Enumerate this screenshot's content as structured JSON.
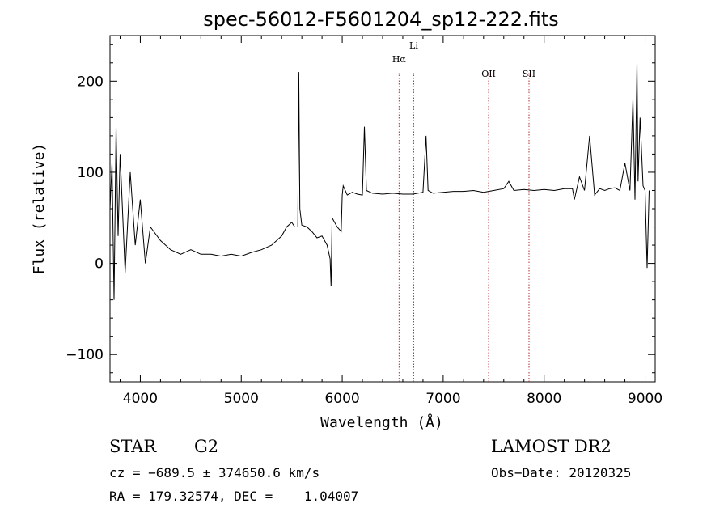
{
  "chart_data": {
    "type": "line",
    "title": "spec-56012-F5601204_sp12-222.fits",
    "xlabel": "Wavelength (Å)",
    "ylabel": "Flux (relative)",
    "xlim": [
      3700,
      9100
    ],
    "ylim": [
      -130,
      250
    ],
    "x_ticks": [
      4000,
      5000,
      6000,
      7000,
      8000,
      9000
    ],
    "y_ticks": [
      -100,
      0,
      100,
      200
    ],
    "grid": false,
    "series": [
      {
        "x": [
          3700,
          3720,
          3740,
          3760,
          3780,
          3800,
          3850,
          3900,
          3950,
          4000,
          4050,
          4100,
          4200,
          4300,
          4400,
          4500,
          4600,
          4700,
          4800,
          4900,
          5000,
          5100,
          5200,
          5300,
          5400,
          5450,
          5500,
          5530,
          5560,
          5570,
          5580,
          5600,
          5650,
          5700,
          5750,
          5800,
          5850,
          5880,
          5890,
          5900,
          5950,
          5990,
          6000,
          6010,
          6050,
          6100,
          6150,
          6200,
          6220,
          6240,
          6300,
          6400,
          6500,
          6600,
          6700,
          6800,
          6830,
          6850,
          6900,
          7000,
          7100,
          7200,
          7300,
          7400,
          7500,
          7600,
          7650,
          7700,
          7800,
          7900,
          8000,
          8100,
          8200,
          8280,
          8300,
          8350,
          8400,
          8450,
          8500,
          8550,
          8600,
          8650,
          8700,
          8750,
          8800,
          8850,
          8880,
          8900,
          8920,
          8930,
          8950,
          8980,
          9000,
          9020,
          9040
        ],
        "y": [
          60,
          110,
          -40,
          150,
          30,
          120,
          -10,
          100,
          20,
          70,
          0,
          40,
          25,
          15,
          10,
          15,
          10,
          10,
          8,
          10,
          8,
          12,
          15,
          20,
          30,
          40,
          45,
          40,
          40,
          210,
          60,
          42,
          40,
          35,
          28,
          30,
          20,
          5,
          -25,
          50,
          40,
          35,
          75,
          85,
          75,
          78,
          76,
          75,
          150,
          80,
          77,
          76,
          77,
          76,
          76,
          78,
          140,
          80,
          77,
          78,
          79,
          79,
          80,
          78,
          80,
          82,
          90,
          80,
          81,
          80,
          81,
          80,
          82,
          82,
          70,
          95,
          80,
          140,
          75,
          82,
          80,
          82,
          83,
          80,
          110,
          80,
          180,
          70,
          220,
          90,
          160,
          85,
          80,
          -5,
          80
        ]
      }
    ],
    "annotations": [
      {
        "label": "Hα",
        "x": 6563
      },
      {
        "label": "Li",
        "x": 6708
      },
      {
        "label": "OII",
        "x": 7450
      },
      {
        "label": "SII",
        "x": 7850
      }
    ]
  },
  "info": {
    "object_class": "STAR",
    "subclass": "G2",
    "survey": "LAMOST DR2",
    "cz_line": "cz = −689.5 ± 374650.6 km/s",
    "obs_date_line": "Obs−Date: 20120325",
    "radec_line": "RA = 179.32574, DEC =    1.04007"
  }
}
